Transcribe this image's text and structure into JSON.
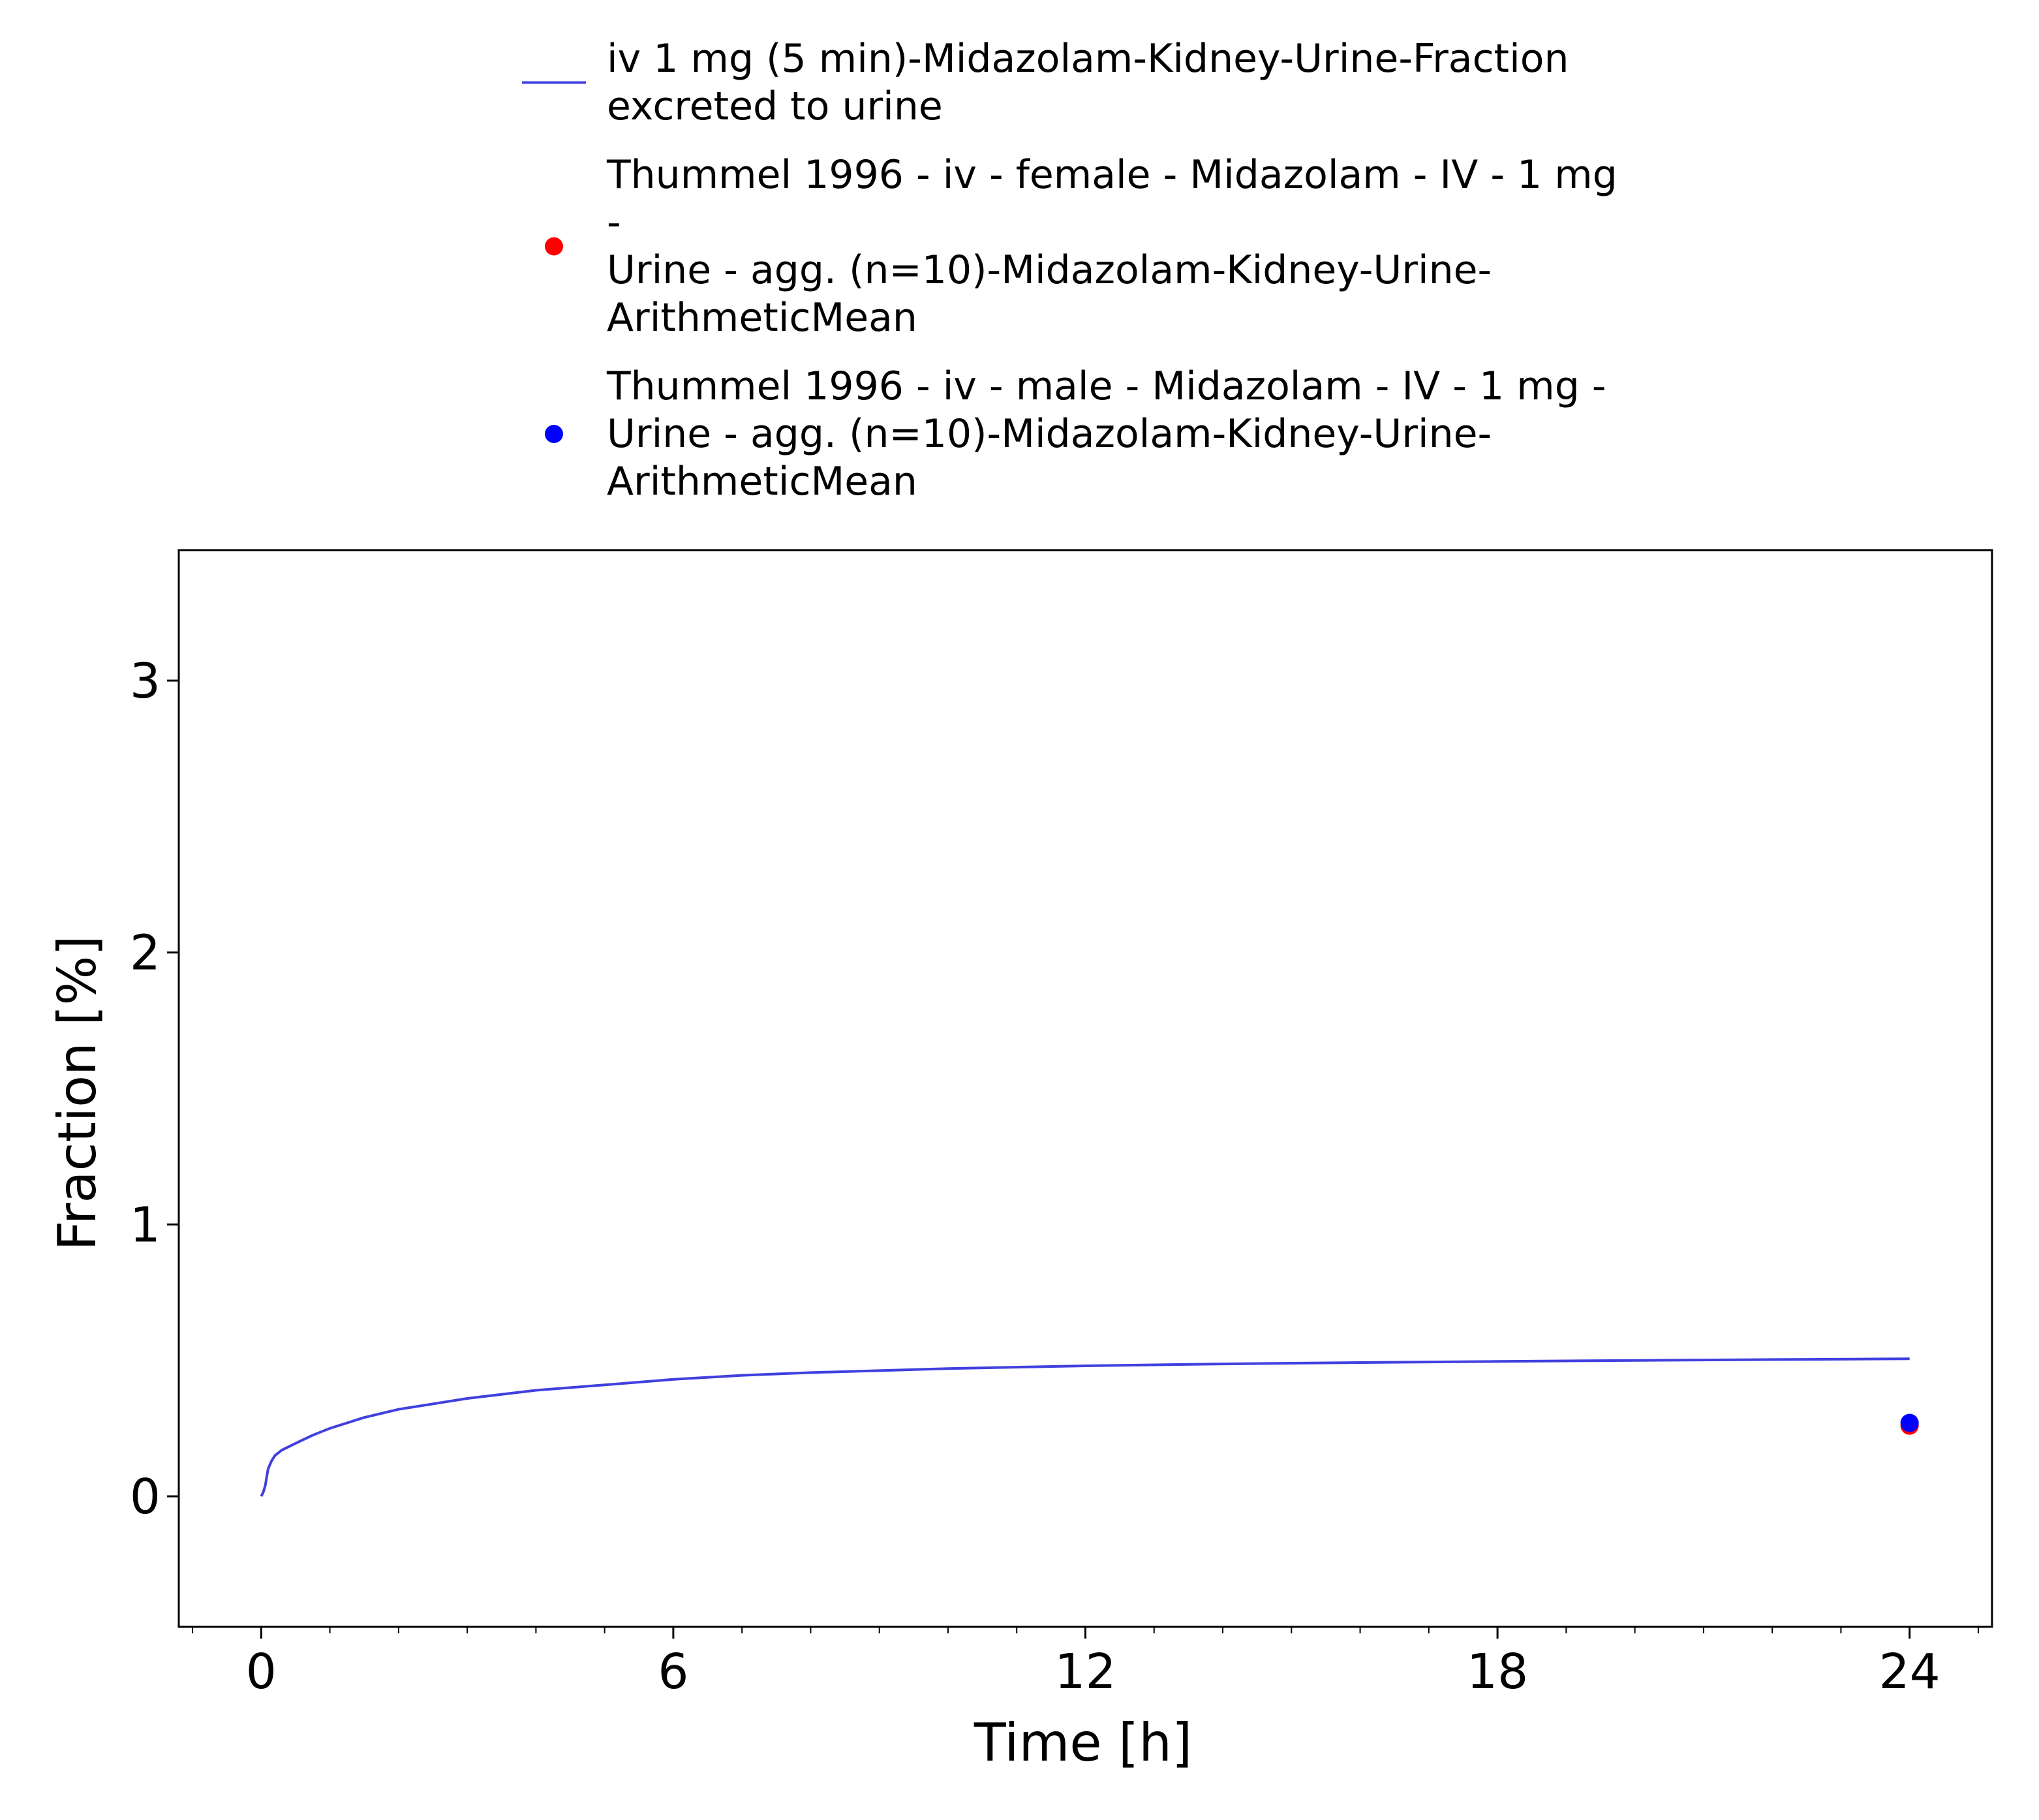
{
  "chart_data": {
    "type": "line",
    "title": "",
    "xlabel": "Time [h]",
    "ylabel": "Fraction [%]",
    "xlim": [
      -1.2,
      25.2
    ],
    "ylim": [
      -0.48,
      3.48
    ],
    "x_ticks": [
      0,
      6,
      12,
      18,
      24
    ],
    "x_tick_labels": [
      "0",
      "6",
      "12",
      "18",
      "24"
    ],
    "x_minor_step": 1,
    "y_ticks": [
      0,
      1,
      2,
      3
    ],
    "y_tick_labels": [
      "0",
      "1",
      "2",
      "3"
    ],
    "grid": false,
    "legend_position": "top",
    "series": [
      {
        "name": "iv 1 mg (5 min)-Midazolam-Kidney-Urine-Fraction excreted to urine",
        "legend_lines": [
          "iv 1 mg (5 min)-Midazolam-Kidney-Urine-Fraction",
          "excreted to urine"
        ],
        "kind": "line",
        "color": "#4040e0",
        "x": [
          0,
          0.03,
          0.06,
          0.08,
          0.1,
          0.15,
          0.2,
          0.3,
          0.5,
          0.75,
          1,
          1.5,
          2,
          3,
          4,
          5,
          6,
          7,
          8,
          10,
          12,
          14,
          16,
          18,
          20,
          22,
          24
        ],
        "y": [
          0,
          0.015,
          0.04,
          0.07,
          0.1,
          0.13,
          0.15,
          0.17,
          0.195,
          0.225,
          0.25,
          0.29,
          0.32,
          0.36,
          0.39,
          0.41,
          0.43,
          0.445,
          0.455,
          0.47,
          0.48,
          0.487,
          0.492,
          0.496,
          0.5,
          0.503,
          0.506
        ]
      },
      {
        "name": "Thummel 1996 - iv - female - Midazolam - IV - 1 mg - Urine - agg. (n=10)-Midazolam-Kidney-Urine-ArithmeticMean",
        "legend_lines": [
          "Thummel 1996 - iv - female - Midazolam - IV - 1 mg",
          "-",
          "Urine - agg. (n=10)-Midazolam-Kidney-Urine-",
          "ArithmeticMean"
        ],
        "kind": "scatter",
        "color": "#ff0000",
        "x": [
          24
        ],
        "y": [
          0.26
        ]
      },
      {
        "name": "Thummel 1996 - iv - male - Midazolam - IV - 1 mg - Urine - agg. (n=10)-Midazolam-Kidney-Urine-ArithmeticMean",
        "legend_lines": [
          "Thummel 1996 - iv - male - Midazolam - IV - 1 mg -",
          "Urine - agg. (n=10)-Midazolam-Kidney-Urine-",
          "ArithmeticMean"
        ],
        "kind": "scatter",
        "color": "#0000ff",
        "x": [
          24
        ],
        "y": [
          0.27
        ]
      }
    ]
  }
}
